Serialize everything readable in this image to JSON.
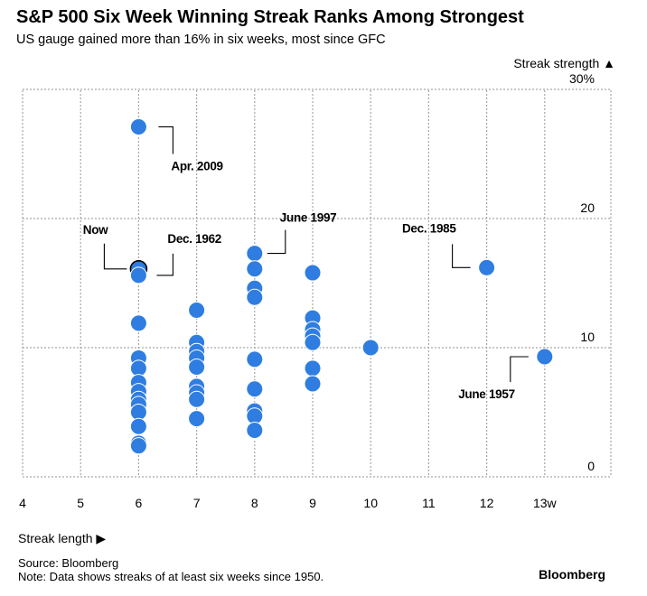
{
  "header": {
    "title": "S&P 500 Six Week Winning Streak Ranks Among Strongest",
    "subtitle": "US gauge gained more than 16% in six weeks, most since GFC"
  },
  "axis_labels": {
    "y": "Streak strength",
    "y_arrow": "▲",
    "x": "Streak length",
    "x_arrow": "▶"
  },
  "footer": {
    "source": "Source: Bloomberg",
    "note": "Note: Data shows streaks of at least six weeks since 1950.",
    "brand": "Bloomberg"
  },
  "colors": {
    "dot": "#2f7de1",
    "dot_stroke": "#ffffff",
    "grid": "#a6a6a6",
    "text": "#000000",
    "highlight_outline": "#000000"
  },
  "chart_data": {
    "type": "scatter",
    "xlim": [
      4,
      13
    ],
    "ylim": [
      0,
      30
    ],
    "x_ticks": [
      4,
      5,
      6,
      7,
      8,
      9,
      10,
      11,
      12,
      13
    ],
    "x_tick_labels": [
      "4",
      "5",
      "6",
      "7",
      "8",
      "9",
      "10",
      "11",
      "12",
      "13w"
    ],
    "y_ticks": [
      0,
      10,
      20,
      30
    ],
    "y_tick_labels": [
      "0",
      "10",
      "20",
      "30%"
    ],
    "grid": true,
    "points": [
      {
        "x": 6,
        "y": 27.1
      },
      {
        "x": 6,
        "y": 16.1,
        "highlight": true
      },
      {
        "x": 6,
        "y": 15.6
      },
      {
        "x": 6,
        "y": 11.9
      },
      {
        "x": 6,
        "y": 9.2
      },
      {
        "x": 6,
        "y": 8.4
      },
      {
        "x": 6,
        "y": 7.3
      },
      {
        "x": 6,
        "y": 6.6
      },
      {
        "x": 6,
        "y": 6.0
      },
      {
        "x": 6,
        "y": 5.6
      },
      {
        "x": 6,
        "y": 5.0
      },
      {
        "x": 6,
        "y": 3.9
      },
      {
        "x": 6,
        "y": 2.6
      },
      {
        "x": 6,
        "y": 2.4
      },
      {
        "x": 7,
        "y": 12.9
      },
      {
        "x": 7,
        "y": 10.4
      },
      {
        "x": 7,
        "y": 9.7
      },
      {
        "x": 7,
        "y": 9.2
      },
      {
        "x": 7,
        "y": 8.5
      },
      {
        "x": 7,
        "y": 7.0
      },
      {
        "x": 7,
        "y": 6.5
      },
      {
        "x": 7,
        "y": 6.0
      },
      {
        "x": 7,
        "y": 4.5
      },
      {
        "x": 8,
        "y": 17.3
      },
      {
        "x": 8,
        "y": 16.1
      },
      {
        "x": 8,
        "y": 14.6
      },
      {
        "x": 8,
        "y": 13.9
      },
      {
        "x": 8,
        "y": 9.1
      },
      {
        "x": 8,
        "y": 6.8
      },
      {
        "x": 8,
        "y": 5.1
      },
      {
        "x": 8,
        "y": 4.7
      },
      {
        "x": 8,
        "y": 3.6
      },
      {
        "x": 9,
        "y": 15.8
      },
      {
        "x": 9,
        "y": 12.3
      },
      {
        "x": 9,
        "y": 11.4
      },
      {
        "x": 9,
        "y": 10.9
      },
      {
        "x": 9,
        "y": 10.4
      },
      {
        "x": 9,
        "y": 8.4
      },
      {
        "x": 9,
        "y": 7.2
      },
      {
        "x": 10,
        "y": 10.0
      },
      {
        "x": 12,
        "y": 16.2
      },
      {
        "x": 13,
        "y": 9.3
      }
    ],
    "annotations": [
      {
        "text": "Apr. 2009",
        "x": 6,
        "y": 27.1
      },
      {
        "text": "Now",
        "x": 6,
        "y": 16.1
      },
      {
        "text": "Dec. 1962",
        "x": 6,
        "y": 15.6
      },
      {
        "text": "June 1997",
        "x": 8,
        "y": 17.3
      },
      {
        "text": "Dec. 1985",
        "x": 12,
        "y": 16.2
      },
      {
        "text": "June 1957",
        "x": 13,
        "y": 9.3
      }
    ]
  }
}
